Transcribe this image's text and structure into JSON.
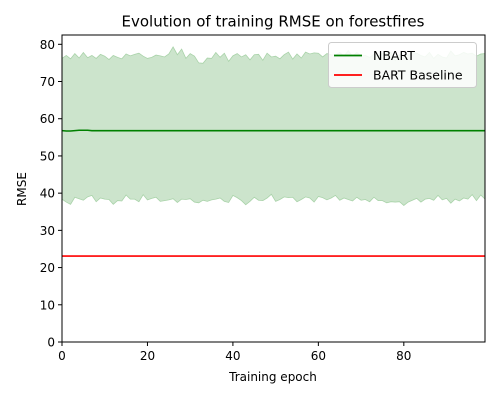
{
  "chart_data": {
    "type": "line",
    "title": "Evolution of training RMSE on forestfires",
    "xlabel": "Training epoch",
    "ylabel": "RMSE",
    "xlim": [
      0,
      99
    ],
    "ylim": [
      0,
      82.5
    ],
    "xticks": [
      0,
      20,
      40,
      60,
      80
    ],
    "yticks": [
      0,
      10,
      20,
      30,
      40,
      50,
      60,
      70,
      80
    ],
    "grid": false,
    "legend_position": "top-right",
    "series": [
      {
        "name": "NBART",
        "color": "#008000",
        "values": [
          56.8,
          56.7,
          56.7,
          56.8,
          56.9,
          56.9,
          56.9,
          56.8,
          56.8,
          56.8,
          56.8,
          56.8,
          56.8,
          56.8,
          56.8,
          56.8,
          56.8,
          56.8,
          56.8,
          56.8,
          56.8,
          56.8,
          56.8,
          56.8,
          56.8,
          56.8,
          56.8,
          56.8,
          56.8,
          56.8,
          56.8,
          56.8,
          56.8,
          56.8,
          56.8,
          56.8,
          56.8,
          56.8,
          56.8,
          56.8,
          56.8,
          56.8,
          56.8,
          56.8,
          56.8,
          56.8,
          56.8,
          56.8,
          56.8,
          56.8,
          56.8,
          56.8,
          56.8,
          56.8,
          56.8,
          56.8,
          56.8,
          56.8,
          56.8,
          56.8,
          56.8,
          56.8,
          56.8,
          56.8,
          56.8,
          56.8,
          56.8,
          56.8,
          56.8,
          56.8,
          56.8,
          56.8,
          56.8,
          56.8,
          56.8,
          56.8,
          56.8,
          56.8,
          56.8,
          56.8,
          56.8,
          56.8,
          56.8,
          56.8,
          56.8,
          56.8,
          56.8,
          56.8,
          56.8,
          56.8,
          56.8,
          56.8,
          56.8,
          56.8,
          56.8,
          56.8,
          56.8,
          56.8,
          56.8,
          56.8
        ],
        "band_upper": [
          76.2,
          77.0,
          76.1,
          77.5,
          76.3,
          77.8,
          76.4,
          77.0,
          76.2,
          77.3,
          76.8,
          75.9,
          77.0,
          76.5,
          76.1,
          77.4,
          76.9,
          77.3,
          77.6,
          76.8,
          76.2,
          76.5,
          77.1,
          76.9,
          76.6,
          77.4,
          79.3,
          77.2,
          78.7,
          76.2,
          77.5,
          76.8,
          75.0,
          74.9,
          76.3,
          76.2,
          77.8,
          76.5,
          77.6,
          75.4,
          76.9,
          77.5,
          76.6,
          77.2,
          75.8,
          77.2,
          77.3,
          75.7,
          77.6,
          76.6,
          76.8,
          76.1,
          77.2,
          77.9,
          76.0,
          77.4,
          76.3,
          77.9,
          77.4,
          77.7,
          77.6,
          76.6,
          77.5,
          77.2,
          77.1,
          77.8,
          76.8,
          78.3,
          76.8,
          77.8,
          76.9,
          77.0,
          76.5,
          77.3,
          76.8,
          77.6,
          77.5,
          77.8,
          75.6,
          77.2,
          77.0,
          77.0,
          77.8,
          77.6,
          77.0,
          76.6,
          77.8,
          76.2,
          77.3,
          76.6,
          76.3,
          78.2,
          76.9,
          77.2,
          77.8,
          77.4,
          77.6,
          76.8,
          77.4,
          77.5
        ],
        "band_lower": [
          38.4,
          37.6,
          37.0,
          38.9,
          38.5,
          38.1,
          39.0,
          39.4,
          37.7,
          38.7,
          38.4,
          38.3,
          37.0,
          38.0,
          37.9,
          39.5,
          38.4,
          38.4,
          37.7,
          39.6,
          38.2,
          38.6,
          38.9,
          37.8,
          38.0,
          38.2,
          38.5,
          37.5,
          38.4,
          38.3,
          38.5,
          37.6,
          37.4,
          38.1,
          37.8,
          38.2,
          38.4,
          38.7,
          37.8,
          37.5,
          39.4,
          38.8,
          38.0,
          36.9,
          37.8,
          38.9,
          38.1,
          38.0,
          38.7,
          39.7,
          37.8,
          38.3,
          39.0,
          38.8,
          38.9,
          37.7,
          38.3,
          39.0,
          38.7,
          37.6,
          39.1,
          38.8,
          38.2,
          38.7,
          39.4,
          38.1,
          38.7,
          38.3,
          37.9,
          38.9,
          38.1,
          38.3,
          37.7,
          38.9,
          38.0,
          38.0,
          37.4,
          37.7,
          37.6,
          37.7,
          36.7,
          37.6,
          38.1,
          38.6,
          37.6,
          38.4,
          38.6,
          38.1,
          39.4,
          38.2,
          38.6,
          37.3,
          38.4,
          37.9,
          38.7,
          38.4,
          39.6,
          38.0,
          39.5,
          38.4
        ]
      },
      {
        "name": "BART Baseline",
        "color": "#ff0000",
        "values": [
          23.1,
          23.1
        ]
      }
    ],
    "band_color": "#cce4cc"
  }
}
